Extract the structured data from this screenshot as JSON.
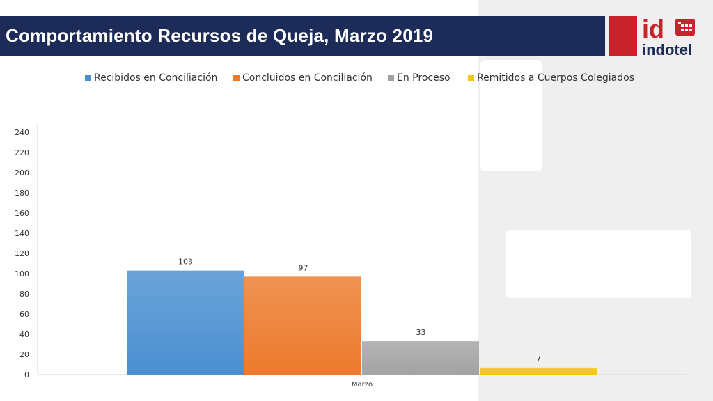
{
  "header": {
    "title": "Comportamiento Recursos de Queja, Marzo 2019"
  },
  "logo": {
    "mark_text": "id",
    "brand_text": "indotel"
  },
  "colors": {
    "title_bar": "#1c2b57",
    "logo_red": "#c8232c",
    "panel": "#efefef"
  },
  "chart_data": {
    "type": "bar",
    "title": "",
    "xlabel": "",
    "ylabel": "",
    "categories": [
      "Marzo"
    ],
    "series": [
      {
        "name": "Recibidos en Conciliación",
        "values": [
          103
        ],
        "color": "#4a8fd0"
      },
      {
        "name": "Concluidos en Conciliación",
        "values": [
          97
        ],
        "color": "#ec7a2c"
      },
      {
        "name": "En Proceso",
        "values": [
          33
        ],
        "color": "#a3a3a3"
      },
      {
        "name": "Remitidos a Cuerpos Colegiados",
        "values": [
          7
        ],
        "color": "#f4c318"
      }
    ],
    "ylim": [
      0,
      240
    ],
    "yticks": [
      "0",
      "20",
      "40",
      "60",
      "80",
      "100",
      "120",
      "140",
      "160",
      "180",
      "200",
      "220",
      "240"
    ],
    "data_labels": [
      "103",
      "97",
      "33",
      "7"
    ],
    "grid": false,
    "legend_position": "top"
  }
}
